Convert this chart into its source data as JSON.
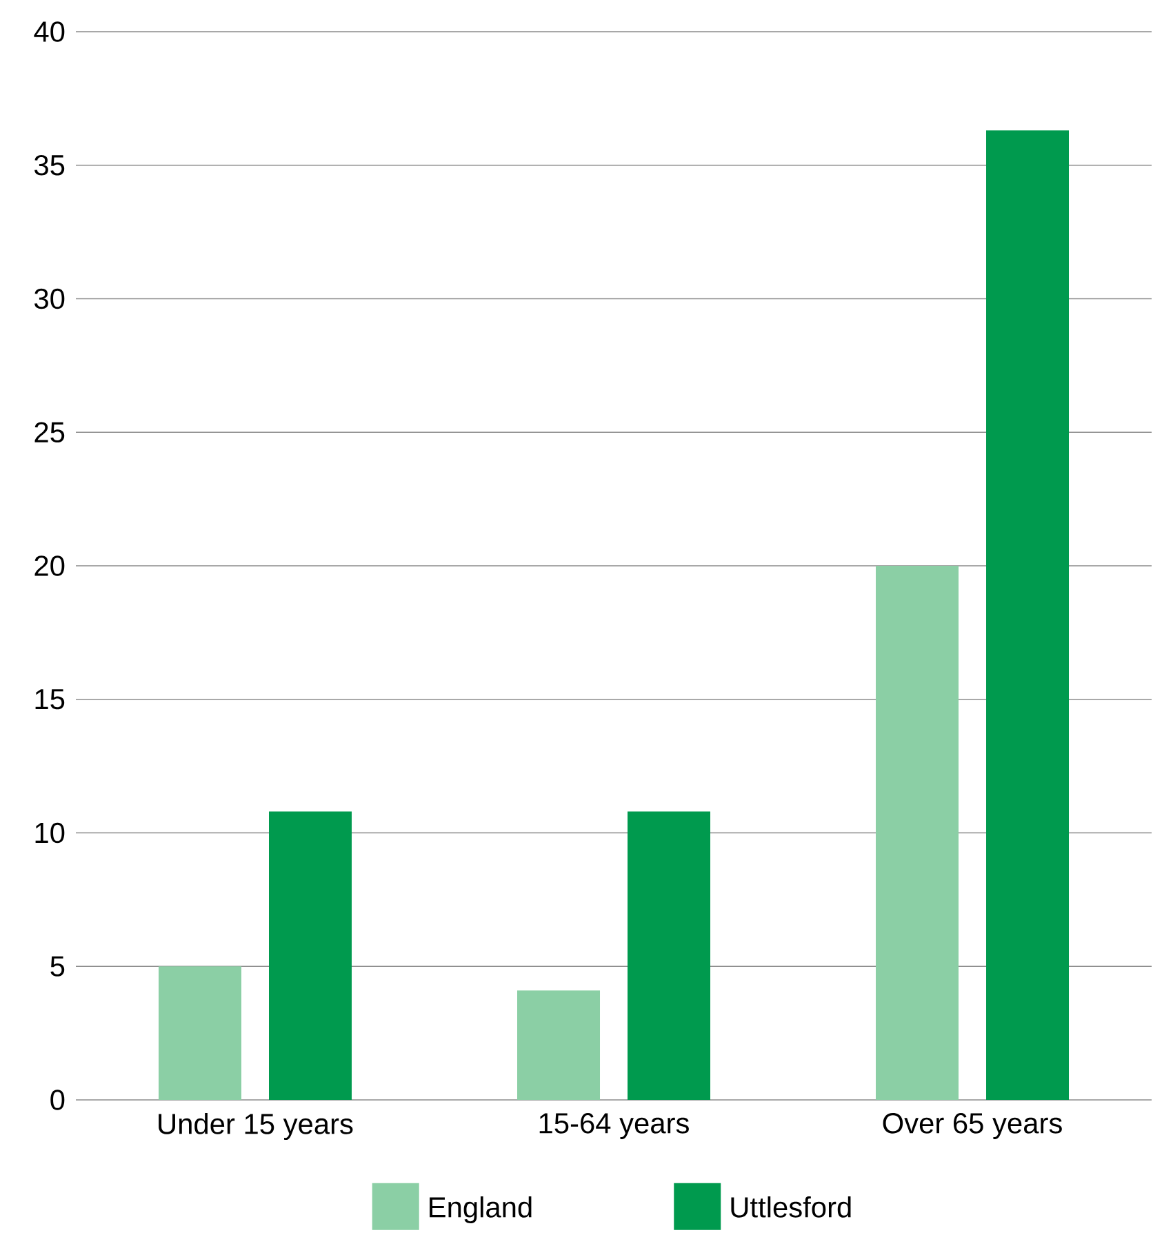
{
  "chart_data": {
    "type": "bar",
    "categories": [
      "Under 15 years",
      "15-64 years",
      "Over 65 years"
    ],
    "series": [
      {
        "name": "England",
        "color": "#8bcfa5",
        "values": [
          5,
          4.1,
          20
        ]
      },
      {
        "name": "Uttlesford",
        "color": "#009a4e",
        "values": [
          10.8,
          10.8,
          36.3
        ]
      }
    ],
    "ylim": [
      0,
      40
    ],
    "yticks": [
      0,
      5,
      10,
      15,
      20,
      25,
      30,
      35,
      40
    ],
    "grid": "y",
    "legend": "bottom"
  }
}
